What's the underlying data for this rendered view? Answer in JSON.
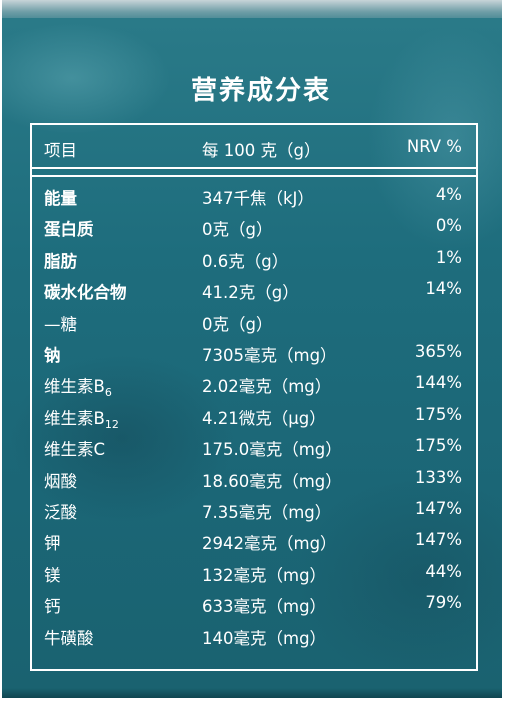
{
  "title": "营养成分表",
  "header": {
    "item": "项目",
    "per": "每 100 克（g）",
    "nrv": "NRV %"
  },
  "rows": [
    {
      "name": "能量",
      "sub": "",
      "value": "347千焦（kJ）",
      "nrv": "4%",
      "bold": true
    },
    {
      "name": "蛋白质",
      "sub": "",
      "value": "0克（g）",
      "nrv": "0%",
      "bold": true
    },
    {
      "name": "脂肪",
      "sub": "",
      "value": "0.6克（g）",
      "nrv": "1%",
      "bold": true
    },
    {
      "name": "碳水化合物",
      "sub": "",
      "value": "41.2克（g）",
      "nrv": "14%",
      "bold": true
    },
    {
      "name": "—糖",
      "sub": "",
      "value": "0克（g）",
      "nrv": "",
      "bold": false
    },
    {
      "name": "钠",
      "sub": "",
      "value": "7305毫克（mg）",
      "nrv": "365%",
      "bold": true
    },
    {
      "name": "维生素B",
      "sub": "6",
      "value": "2.02毫克（mg）",
      "nrv": "144%",
      "bold": false
    },
    {
      "name": "维生素B",
      "sub": "12",
      "value": "4.21微克（μg）",
      "nrv": "175%",
      "bold": false
    },
    {
      "name": "维生素C",
      "sub": "",
      "value": "175.0毫克（mg）",
      "nrv": "175%",
      "bold": false
    },
    {
      "name": "烟酸",
      "sub": "",
      "value": "18.60毫克（mg）",
      "nrv": "133%",
      "bold": false
    },
    {
      "name": "泛酸",
      "sub": "",
      "value": "7.35毫克（mg）",
      "nrv": "147%",
      "bold": false
    },
    {
      "name": "钾",
      "sub": "",
      "value": "2942毫克（mg）",
      "nrv": "147%",
      "bold": false
    },
    {
      "name": "镁",
      "sub": "",
      "value": "132毫克（mg）",
      "nrv": "44%",
      "bold": false
    },
    {
      "name": "钙",
      "sub": "",
      "value": "633毫克（mg）",
      "nrv": "79%",
      "bold": false
    },
    {
      "name": "牛磺酸",
      "sub": "",
      "value": "140毫克（mg）",
      "nrv": "",
      "bold": false
    }
  ]
}
